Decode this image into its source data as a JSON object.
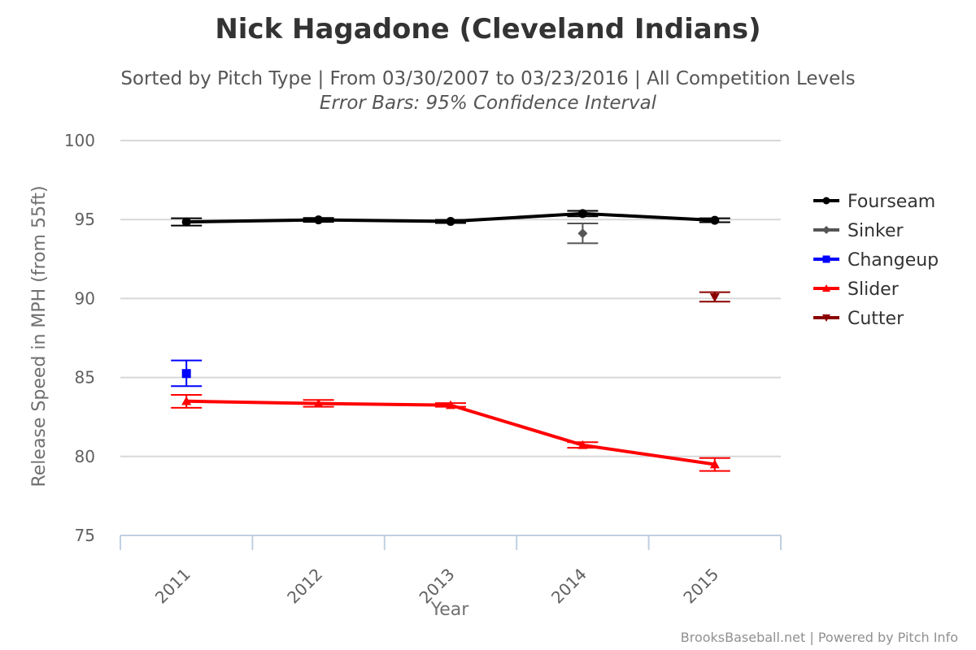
{
  "chart_data": {
    "type": "line",
    "title": "Nick Hagadone (Cleveland Indians)",
    "subtitle": "Sorted by Pitch Type | From 03/30/2007 to 03/23/2016 | All Competition Levels",
    "subtitle2": "Error Bars: 95% Confidence Interval",
    "xlabel": "Year",
    "ylabel": "Release Speed in MPH (from 55ft)",
    "categories": [
      "2011",
      "2012",
      "2013",
      "2014",
      "2015"
    ],
    "yticks": [
      "100",
      "95",
      "90",
      "85",
      "80",
      "75"
    ],
    "ylim": [
      75,
      100
    ],
    "grid": true,
    "legend_position": "right",
    "series": [
      {
        "name": "Fourseam",
        "color": "#000000",
        "marker": "circle",
        "line": true,
        "values": [
          94.85,
          94.98,
          94.88,
          95.38,
          94.95
        ],
        "err": [
          [
            94.62,
            95.08
          ],
          [
            94.85,
            95.1
          ],
          [
            94.78,
            94.98
          ],
          [
            95.2,
            95.55
          ],
          [
            94.83,
            95.08
          ]
        ]
      },
      {
        "name": "Sinker",
        "color": "#555555",
        "marker": "diamond",
        "line": true,
        "values": [
          null,
          null,
          null,
          94.12,
          null
        ],
        "err": [
          null,
          null,
          null,
          [
            93.5,
            94.75
          ],
          null
        ]
      },
      {
        "name": "Changeup",
        "color": "#0000ff",
        "marker": "square",
        "line": true,
        "values": [
          85.25,
          null,
          null,
          null,
          null
        ],
        "err": [
          [
            84.45,
            86.08
          ],
          null,
          null,
          null,
          null
        ]
      },
      {
        "name": "Slider",
        "color": "#ff0000",
        "marker": "triangle",
        "line": true,
        "values": [
          83.5,
          83.35,
          83.25,
          80.72,
          79.5
        ],
        "err": [
          [
            83.08,
            83.9
          ],
          [
            83.15,
            83.58
          ],
          [
            83.15,
            83.38
          ],
          [
            80.55,
            80.9
          ],
          [
            79.08,
            79.9
          ]
        ]
      },
      {
        "name": "Cutter",
        "color": "#8b0000",
        "marker": "triangle-down",
        "line": true,
        "values": [
          null,
          null,
          null,
          null,
          90.08
        ],
        "err": [
          null,
          null,
          null,
          null,
          [
            89.8,
            90.4
          ]
        ]
      }
    ]
  },
  "credits": "BrooksBaseball.net | Powered by Pitch Info",
  "colors": {
    "grid": "#d8d8d8",
    "axis": "#c0d0e0",
    "text": "#333333"
  }
}
